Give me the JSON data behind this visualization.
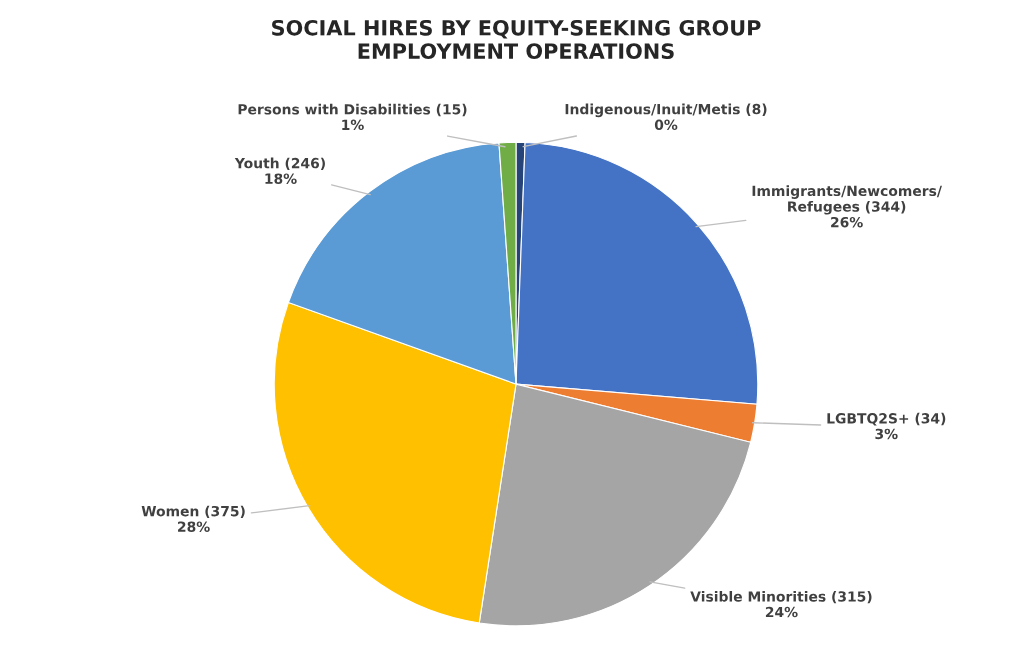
{
  "chart_data": {
    "type": "pie",
    "title": "SOCIAL HIRES BY EQUITY-SEEKING GROUP\nEMPLOYMENT OPERATIONS",
    "categories": [
      "Indigenous/Inuit/Metis",
      "Immigrants/Newcomers/\nRefugees",
      "LGBTQ2S+",
      "Visible Minorities",
      "Women",
      "Youth",
      "Persons with Disabilities"
    ],
    "values": [
      8,
      344,
      34,
      315,
      375,
      246,
      15
    ],
    "colors": [
      "#264478",
      "#4472c4",
      "#ed7d31",
      "#a5a5a5",
      "#ffc000",
      "#5b9bd5",
      "#70ad47"
    ],
    "value_labels": [
      "(8)\n0%",
      "(344)\n26%",
      "(34)\n3%",
      "(315)\n24%",
      "(375)\n28%",
      "(246)\n18%",
      "(15)\n1%"
    ]
  }
}
